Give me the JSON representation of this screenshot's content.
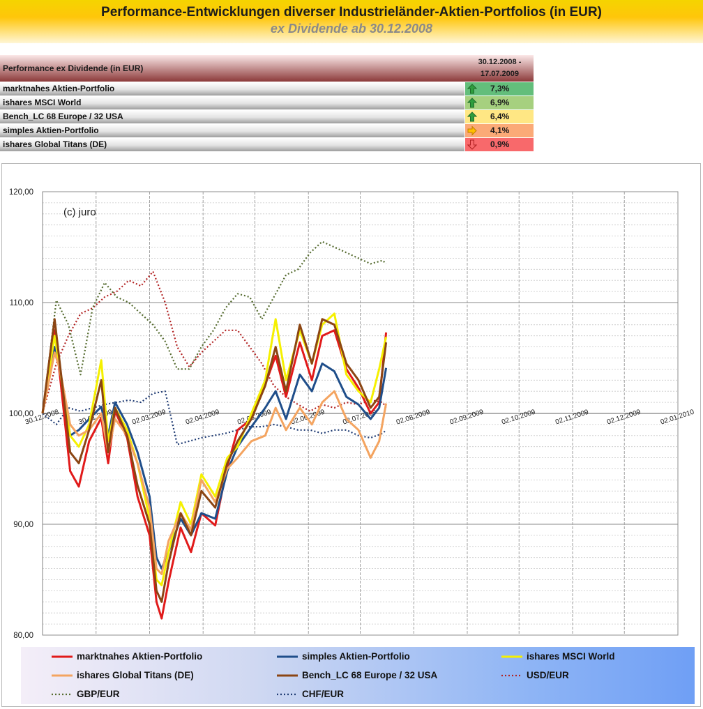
{
  "title": {
    "main": "Performance-Entwicklungen diverser Industrieländer-Aktien-Portfolios (in EUR)",
    "sub": "ex Dividende ab 30.12.2008"
  },
  "perf_table": {
    "header_label": "Performance ex Dividende (in EUR)",
    "period_line1": "30.12.2008 -",
    "period_line2": "17.07.2009",
    "rows": [
      {
        "name": "marktnahes Aktien-Portfolio",
        "value": "7,3%",
        "trend": "up",
        "arrow_icon": "green-up-arrow-icon",
        "bg": "#63be7b"
      },
      {
        "name": "ishares MSCI World",
        "value": "6,9%",
        "trend": "up",
        "arrow_icon": "green-up-arrow-icon",
        "bg": "#a6d07f"
      },
      {
        "name": "Bench_LC 68 Europe / 32 USA",
        "value": "6,4%",
        "trend": "up",
        "arrow_icon": "green-up-arrow-icon",
        "bg": "#ffe784"
      },
      {
        "name": "simples Aktien-Portfolio",
        "value": "4,1%",
        "trend": "sideways",
        "arrow_icon": "orange-right-arrow-icon",
        "bg": "#fbaa77"
      },
      {
        "name": "ishares Global Titans (DE)",
        "value": "0,9%",
        "trend": "down",
        "arrow_icon": "red-down-arrow-icon",
        "bg": "#f8696b"
      }
    ]
  },
  "chart_data": {
    "type": "line",
    "watermark": "(c) juro",
    "ylim": [
      80,
      120
    ],
    "yticks": [
      "80,00",
      "90,00",
      "100,00",
      "110,00",
      "120,00"
    ],
    "xticks": [
      "30.12.2008",
      "30.01.2009",
      "02.03.2009",
      "02.04.2009",
      "02.05.2009",
      "02.06.2009",
      "02.07.2009",
      "02.08.2009",
      "02.09.2009",
      "02.10.2009",
      "02.11.2009",
      "02.12.2009",
      "02.01.2010"
    ],
    "grid": true,
    "legend_position": "bottom",
    "series": [
      {
        "name": "marktnahes Aktien-Portfolio",
        "color": "#e11a1a",
        "style": "solid",
        "x": [
          "2008-12-30",
          "2009-01-06",
          "2009-01-09",
          "2009-01-15",
          "2009-01-20",
          "2009-01-26",
          "2009-02-02",
          "2009-02-06",
          "2009-02-10",
          "2009-02-17",
          "2009-02-23",
          "2009-03-02",
          "2009-03-06",
          "2009-03-09",
          "2009-03-13",
          "2009-03-20",
          "2009-03-26",
          "2009-04-01",
          "2009-04-09",
          "2009-04-16",
          "2009-04-22",
          "2009-04-30",
          "2009-05-08",
          "2009-05-14",
          "2009-05-20",
          "2009-05-28",
          "2009-06-04",
          "2009-06-10",
          "2009-06-17",
          "2009-06-24",
          "2009-07-01",
          "2009-07-08",
          "2009-07-13",
          "2009-07-17"
        ],
        "values": [
          100,
          107.5,
          103.5,
          94.8,
          93.4,
          97.5,
          99.6,
          95.5,
          100.2,
          97.8,
          92.5,
          89.0,
          83.0,
          81.5,
          84.8,
          89.7,
          87.5,
          91.0,
          89.9,
          95.2,
          98.5,
          99.5,
          102.6,
          105.2,
          101.5,
          106.4,
          103.0,
          107.0,
          107.5,
          104.0,
          102.3,
          100.0,
          101.0,
          107.3
        ]
      },
      {
        "name": "simples Aktien-Portfolio",
        "color": "#1f4e8a",
        "style": "solid",
        "x": [
          "2008-12-30",
          "2009-01-06",
          "2009-01-09",
          "2009-01-15",
          "2009-01-20",
          "2009-01-26",
          "2009-02-02",
          "2009-02-06",
          "2009-02-10",
          "2009-02-17",
          "2009-02-23",
          "2009-03-02",
          "2009-03-06",
          "2009-03-09",
          "2009-03-13",
          "2009-03-20",
          "2009-03-26",
          "2009-04-01",
          "2009-04-09",
          "2009-04-16",
          "2009-04-22",
          "2009-04-30",
          "2009-05-08",
          "2009-05-14",
          "2009-05-20",
          "2009-05-28",
          "2009-06-04",
          "2009-06-10",
          "2009-06-17",
          "2009-06-24",
          "2009-07-01",
          "2009-07-08",
          "2009-07-13",
          "2009-07-17"
        ],
        "values": [
          100,
          106.0,
          104.0,
          98.0,
          98.5,
          99.5,
          100.6,
          98.0,
          101.0,
          99.0,
          96.5,
          92.5,
          87.0,
          86.0,
          87.5,
          90.5,
          89.0,
          91.0,
          90.5,
          94.8,
          97.0,
          98.8,
          100.5,
          102.0,
          99.5,
          103.5,
          102.0,
          104.5,
          103.8,
          101.5,
          100.8,
          99.5,
          100.5,
          104.1
        ]
      },
      {
        "name": "ishares MSCI World",
        "color": "#f5f000",
        "style": "solid",
        "x": [
          "2008-12-30",
          "2009-01-06",
          "2009-01-09",
          "2009-01-15",
          "2009-01-20",
          "2009-01-26",
          "2009-02-02",
          "2009-02-06",
          "2009-02-10",
          "2009-02-17",
          "2009-02-23",
          "2009-03-02",
          "2009-03-06",
          "2009-03-09",
          "2009-03-13",
          "2009-03-20",
          "2009-03-26",
          "2009-04-01",
          "2009-04-09",
          "2009-04-16",
          "2009-04-22",
          "2009-04-30",
          "2009-05-08",
          "2009-05-14",
          "2009-05-20",
          "2009-05-28",
          "2009-06-04",
          "2009-06-10",
          "2009-06-17",
          "2009-06-24",
          "2009-07-01",
          "2009-07-08",
          "2009-07-13",
          "2009-07-17"
        ],
        "values": [
          100,
          107.0,
          104.0,
          98.0,
          97.0,
          99.0,
          104.8,
          97.5,
          100.5,
          98.5,
          95.5,
          90.5,
          85.0,
          84.5,
          87.5,
          92.0,
          90.0,
          94.5,
          92.5,
          96.0,
          97.0,
          100.0,
          103.0,
          108.5,
          103.0,
          107.5,
          104.5,
          108.0,
          109.0,
          103.5,
          102.0,
          101.0,
          104.0,
          106.9
        ]
      },
      {
        "name": "ishares Global Titans (DE)",
        "color": "#f4a460",
        "style": "solid",
        "x": [
          "2008-12-30",
          "2009-01-06",
          "2009-01-09",
          "2009-01-15",
          "2009-01-20",
          "2009-01-26",
          "2009-02-02",
          "2009-02-06",
          "2009-02-10",
          "2009-02-17",
          "2009-02-23",
          "2009-03-02",
          "2009-03-06",
          "2009-03-09",
          "2009-03-13",
          "2009-03-20",
          "2009-03-26",
          "2009-04-01",
          "2009-04-09",
          "2009-04-16",
          "2009-04-22",
          "2009-04-30",
          "2009-05-08",
          "2009-05-14",
          "2009-05-20",
          "2009-05-28",
          "2009-06-04",
          "2009-06-10",
          "2009-06-17",
          "2009-06-24",
          "2009-07-01",
          "2009-07-08",
          "2009-07-13",
          "2009-07-17"
        ],
        "values": [
          100,
          105.5,
          104.0,
          99.0,
          98.0,
          98.5,
          100.0,
          96.5,
          99.5,
          98.0,
          95.5,
          91.5,
          86.0,
          85.5,
          88.5,
          91.0,
          89.5,
          94.0,
          92.0,
          95.0,
          96.0,
          97.5,
          98.0,
          100.5,
          98.5,
          100.5,
          99.0,
          101.0,
          102.0,
          99.5,
          98.5,
          96.0,
          97.5,
          100.9
        ]
      },
      {
        "name": "Bench_LC  68 Europe / 32 USA",
        "color": "#8b4513",
        "style": "solid",
        "x": [
          "2008-12-30",
          "2009-01-06",
          "2009-01-09",
          "2009-01-15",
          "2009-01-20",
          "2009-01-26",
          "2009-02-02",
          "2009-02-06",
          "2009-02-10",
          "2009-02-17",
          "2009-02-23",
          "2009-03-02",
          "2009-03-06",
          "2009-03-09",
          "2009-03-13",
          "2009-03-20",
          "2009-03-26",
          "2009-04-01",
          "2009-04-09",
          "2009-04-16",
          "2009-04-22",
          "2009-04-30",
          "2009-05-08",
          "2009-05-14",
          "2009-05-20",
          "2009-05-28",
          "2009-06-04",
          "2009-06-10",
          "2009-06-17",
          "2009-06-24",
          "2009-07-01",
          "2009-07-08",
          "2009-07-13",
          "2009-07-17"
        ],
        "values": [
          100,
          108.5,
          104.5,
          96.5,
          95.5,
          98.5,
          103.0,
          96.5,
          100.5,
          98.0,
          93.5,
          90.0,
          84.0,
          83.0,
          86.5,
          91.0,
          89.0,
          93.0,
          91.5,
          95.5,
          97.5,
          99.5,
          102.5,
          106.0,
          102.0,
          108.0,
          104.5,
          108.5,
          108.0,
          104.5,
          103.0,
          100.5,
          101.5,
          106.4
        ]
      },
      {
        "name": "USD/EUR",
        "color": "#b22222",
        "style": "dotted",
        "x": [
          "2008-12-30",
          "2009-01-07",
          "2009-01-14",
          "2009-01-21",
          "2009-01-28",
          "2009-02-04",
          "2009-02-11",
          "2009-02-18",
          "2009-02-25",
          "2009-03-04",
          "2009-03-11",
          "2009-03-18",
          "2009-03-25",
          "2009-04-01",
          "2009-04-08",
          "2009-04-15",
          "2009-04-22",
          "2009-04-29",
          "2009-05-06",
          "2009-05-13",
          "2009-05-20",
          "2009-05-27",
          "2009-06-03",
          "2009-06-10",
          "2009-06-17",
          "2009-06-24",
          "2009-07-01",
          "2009-07-08",
          "2009-07-15",
          "2009-07-17"
        ],
        "values": [
          100,
          104.5,
          107.0,
          109.0,
          109.5,
          110.5,
          111.0,
          112.0,
          111.5,
          112.8,
          110.0,
          106.0,
          104.2,
          105.5,
          106.5,
          107.5,
          107.5,
          106.0,
          104.5,
          102.5,
          101.5,
          100.8,
          100.2,
          100.8,
          100.5,
          101.0,
          100.8,
          101.2,
          101.0,
          100.5
        ]
      },
      {
        "name": "GBP/EUR",
        "color": "#556b2f",
        "style": "dotted",
        "x": [
          "2008-12-30",
          "2009-01-07",
          "2009-01-14",
          "2009-01-21",
          "2009-01-28",
          "2009-02-04",
          "2009-02-11",
          "2009-02-18",
          "2009-02-25",
          "2009-03-04",
          "2009-03-11",
          "2009-03-18",
          "2009-03-25",
          "2009-04-01",
          "2009-04-08",
          "2009-04-15",
          "2009-04-22",
          "2009-04-29",
          "2009-05-06",
          "2009-05-13",
          "2009-05-20",
          "2009-05-27",
          "2009-06-03",
          "2009-06-10",
          "2009-06-17",
          "2009-06-24",
          "2009-07-01",
          "2009-07-08",
          "2009-07-15",
          "2009-07-17"
        ],
        "values": [
          100,
          110.2,
          108.0,
          103.5,
          109.5,
          111.8,
          110.5,
          110.0,
          109.0,
          108.0,
          106.5,
          104.0,
          104.0,
          106.0,
          107.5,
          109.5,
          110.8,
          110.5,
          108.5,
          110.5,
          112.5,
          113.0,
          114.5,
          115.5,
          115.0,
          114.5,
          114.0,
          113.5,
          113.8,
          113.5
        ]
      },
      {
        "name": "CHF/EUR",
        "color": "#1f3b73",
        "style": "dotted",
        "x": [
          "2008-12-30",
          "2009-01-07",
          "2009-01-14",
          "2009-01-21",
          "2009-01-28",
          "2009-02-04",
          "2009-02-11",
          "2009-02-18",
          "2009-02-25",
          "2009-03-04",
          "2009-03-11",
          "2009-03-18",
          "2009-03-25",
          "2009-04-01",
          "2009-04-08",
          "2009-04-15",
          "2009-04-22",
          "2009-04-29",
          "2009-05-06",
          "2009-05-13",
          "2009-05-20",
          "2009-05-27",
          "2009-06-03",
          "2009-06-10",
          "2009-06-17",
          "2009-06-24",
          "2009-07-01",
          "2009-07-08",
          "2009-07-15",
          "2009-07-17"
        ],
        "values": [
          100,
          99.0,
          100.5,
          100.2,
          100.5,
          100.8,
          101.0,
          101.2,
          101.0,
          101.8,
          102.0,
          97.2,
          97.5,
          97.8,
          98.0,
          98.2,
          98.5,
          98.8,
          98.8,
          99.0,
          98.8,
          98.5,
          98.5,
          98.2,
          98.5,
          98.5,
          98.0,
          97.8,
          98.2,
          98.5
        ]
      }
    ]
  }
}
